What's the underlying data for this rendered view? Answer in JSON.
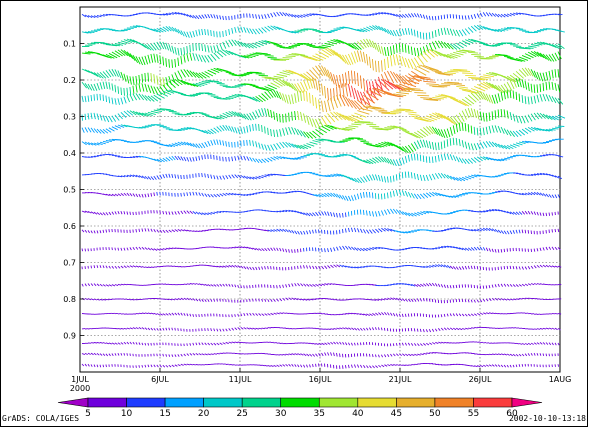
{
  "chart_data": {
    "type": "line",
    "description_series": "wind-vector barb field by sigma level over time",
    "x": {
      "ticks": [
        "1JUL",
        "6JUL",
        "11JUL",
        "16JUL",
        "21JUL",
        "26JUL",
        "1AUG"
      ],
      "start_year_label": "2000"
    },
    "y": {
      "ticks": [
        "0.1",
        "0.2",
        "0.3",
        "0.4",
        "0.5",
        "0.6",
        "0.7",
        "0.8",
        "0.9"
      ],
      "range": [
        0.0,
        1.0
      ],
      "inverted": true
    },
    "grid": true,
    "colorbar": {
      "labels": [
        "5",
        "10",
        "15",
        "20",
        "25",
        "30",
        "35",
        "40",
        "45",
        "50",
        "55",
        "60"
      ],
      "colors": [
        "#a000c8",
        "#6e00dc",
        "#1e3cff",
        "#00a0ff",
        "#00c8c8",
        "#00d28c",
        "#00dc00",
        "#a0e632",
        "#e6dc32",
        "#e6af2d",
        "#f08228",
        "#fa3c3c",
        "#f00082"
      ]
    },
    "levels": [
      {
        "y": 0.02,
        "speed": [
          12,
          12,
          14,
          13,
          12,
          14,
          15,
          14,
          12,
          13,
          12,
          14,
          13,
          12
        ]
      },
      {
        "y": 0.06,
        "speed": [
          20,
          22,
          24,
          22,
          20,
          22,
          26,
          24,
          22,
          24,
          26,
          22,
          24,
          22
        ]
      },
      {
        "y": 0.1,
        "speed": [
          26,
          28,
          30,
          28,
          26,
          30,
          32,
          34,
          36,
          32,
          30,
          28,
          30,
          26
        ]
      },
      {
        "y": 0.13,
        "speed": [
          30,
          32,
          34,
          30,
          28,
          34,
          40,
          44,
          46,
          42,
          38,
          36,
          32,
          30
        ]
      },
      {
        "y": 0.18,
        "speed": [
          28,
          30,
          36,
          32,
          30,
          36,
          44,
          52,
          56,
          50,
          44,
          40,
          36,
          32
        ]
      },
      {
        "y": 0.21,
        "speed": [
          26,
          28,
          34,
          30,
          28,
          34,
          42,
          54,
          58,
          52,
          46,
          40,
          34,
          30
        ]
      },
      {
        "y": 0.24,
        "speed": [
          22,
          24,
          30,
          28,
          26,
          32,
          40,
          50,
          52,
          48,
          42,
          36,
          30,
          26
        ]
      },
      {
        "y": 0.29,
        "speed": [
          22,
          24,
          28,
          26,
          26,
          30,
          36,
          44,
          46,
          42,
          40,
          34,
          28,
          24
        ]
      },
      {
        "y": 0.33,
        "speed": [
          18,
          20,
          24,
          22,
          22,
          26,
          30,
          36,
          38,
          36,
          34,
          28,
          24,
          20
        ]
      },
      {
        "y": 0.37,
        "speed": [
          16,
          18,
          20,
          18,
          18,
          22,
          26,
          30,
          32,
          30,
          28,
          24,
          20,
          18
        ]
      },
      {
        "y": 0.41,
        "speed": [
          12,
          14,
          16,
          14,
          14,
          16,
          20,
          24,
          26,
          24,
          22,
          20,
          16,
          14
        ]
      },
      {
        "y": 0.46,
        "speed": [
          10,
          10,
          12,
          12,
          12,
          14,
          16,
          20,
          22,
          22,
          20,
          18,
          14,
          12
        ]
      },
      {
        "y": 0.51,
        "speed": [
          8,
          8,
          10,
          10,
          10,
          12,
          14,
          18,
          20,
          20,
          18,
          16,
          12,
          10
        ]
      },
      {
        "y": 0.56,
        "speed": [
          8,
          8,
          8,
          10,
          10,
          10,
          12,
          14,
          18,
          18,
          16,
          14,
          10,
          8
        ]
      },
      {
        "y": 0.61,
        "speed": [
          6,
          8,
          8,
          8,
          8,
          10,
          10,
          12,
          14,
          16,
          14,
          12,
          10,
          8
        ]
      },
      {
        "y": 0.66,
        "speed": [
          6,
          6,
          8,
          8,
          8,
          8,
          10,
          12,
          12,
          14,
          12,
          10,
          8,
          8
        ]
      },
      {
        "y": 0.71,
        "speed": [
          6,
          6,
          6,
          8,
          8,
          8,
          8,
          10,
          10,
          12,
          10,
          8,
          8,
          6
        ]
      },
      {
        "y": 0.76,
        "speed": [
          6,
          6,
          6,
          6,
          6,
          8,
          8,
          8,
          10,
          10,
          8,
          8,
          6,
          6
        ]
      },
      {
        "y": 0.8,
        "speed": [
          5,
          6,
          6,
          6,
          6,
          6,
          8,
          8,
          8,
          8,
          8,
          6,
          6,
          6
        ]
      },
      {
        "y": 0.84,
        "speed": [
          5,
          5,
          6,
          6,
          6,
          6,
          6,
          8,
          8,
          8,
          6,
          6,
          6,
          5
        ]
      },
      {
        "y": 0.88,
        "speed": [
          5,
          5,
          5,
          6,
          6,
          6,
          6,
          6,
          6,
          8,
          6,
          6,
          5,
          5
        ]
      },
      {
        "y": 0.92,
        "speed": [
          5,
          5,
          5,
          5,
          6,
          6,
          6,
          6,
          6,
          6,
          6,
          5,
          5,
          5
        ]
      },
      {
        "y": 0.95,
        "speed": [
          5,
          5,
          5,
          5,
          5,
          6,
          6,
          10,
          6,
          6,
          10,
          5,
          5,
          5
        ]
      },
      {
        "y": 0.98,
        "speed": [
          5,
          5,
          5,
          5,
          5,
          5,
          6,
          10,
          6,
          6,
          10,
          5,
          5,
          5
        ]
      }
    ]
  },
  "footer": {
    "left": "GrADS: COLA/IGES",
    "right": "2002-10-10-13:18"
  }
}
